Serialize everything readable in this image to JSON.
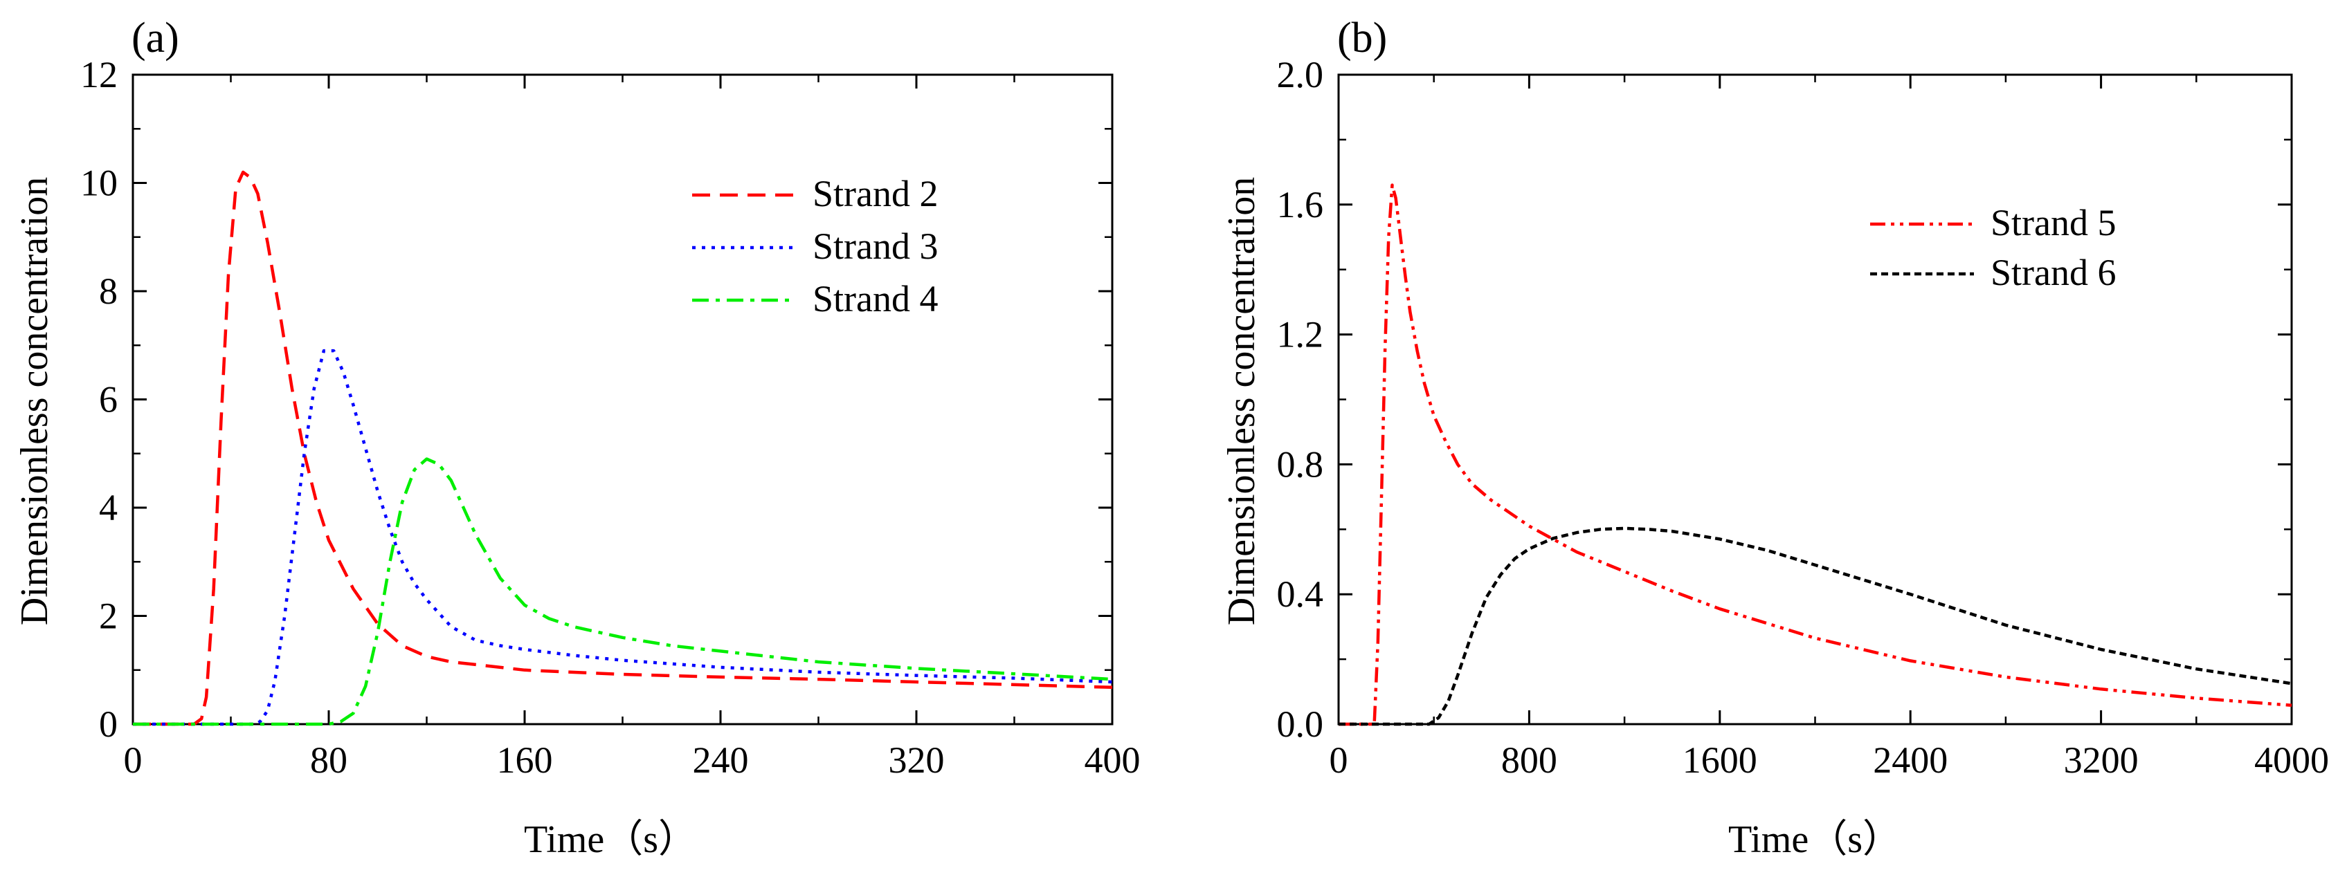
{
  "figure": {
    "panel_labels": [
      "(a)",
      "(b)"
    ]
  },
  "chart_data": [
    {
      "type": "line",
      "panel": "(a)",
      "title": "",
      "xlabel": "Time（s）",
      "ylabel": "Dimensionless concentration",
      "xlim": [
        0,
        400
      ],
      "ylim": [
        0,
        12
      ],
      "xticks": [
        0,
        80,
        160,
        240,
        320,
        400
      ],
      "yticks": [
        0,
        2,
        4,
        6,
        8,
        10,
        12
      ],
      "xtick_labels": [
        "0",
        "80",
        "160",
        "240",
        "320",
        "400"
      ],
      "ytick_labels": [
        "0",
        "2",
        "4",
        "6",
        "8",
        "10",
        "12"
      ],
      "grid": false,
      "legend": "upper-right",
      "series": [
        {
          "name": "Strand 2",
          "color": "#ff0000",
          "dash": "dashed",
          "x": [
            0,
            25,
            28,
            30,
            33,
            36,
            39,
            42,
            45,
            48,
            51,
            55,
            60,
            65,
            70,
            75,
            80,
            90,
            100,
            110,
            120,
            130,
            140,
            160,
            200,
            240,
            280,
            320,
            360,
            400
          ],
          "y": [
            0,
            0,
            0.1,
            0.5,
            2.5,
            5.6,
            8.3,
            9.9,
            10.2,
            10.1,
            9.8,
            8.9,
            7.6,
            6.2,
            5.0,
            4.1,
            3.4,
            2.5,
            1.85,
            1.45,
            1.25,
            1.15,
            1.1,
            1.0,
            0.92,
            0.87,
            0.83,
            0.78,
            0.73,
            0.68
          ]
        },
        {
          "name": "Strand 3",
          "color": "#0000ff",
          "dash": "dotted",
          "x": [
            0,
            50,
            52,
            55,
            58,
            62,
            66,
            70,
            74,
            78,
            82,
            86,
            90,
            95,
            100,
            105,
            110,
            115,
            120,
            130,
            140,
            150,
            160,
            180,
            200,
            240,
            280,
            320,
            360,
            400
          ],
          "y": [
            0,
            0,
            0.05,
            0.25,
            0.8,
            2.0,
            3.5,
            5.0,
            6.2,
            6.9,
            6.9,
            6.5,
            5.9,
            5.1,
            4.3,
            3.6,
            3.0,
            2.6,
            2.3,
            1.8,
            1.55,
            1.45,
            1.38,
            1.27,
            1.18,
            1.05,
            0.96,
            0.9,
            0.85,
            0.78
          ]
        },
        {
          "name": "Strand 4",
          "color": "#00ee00",
          "dash": "dashdot",
          "x": [
            0,
            80,
            85,
            90,
            95,
            100,
            105,
            110,
            115,
            120,
            125,
            130,
            135,
            140,
            150,
            160,
            170,
            180,
            190,
            200,
            220,
            240,
            260,
            280,
            320,
            360,
            400
          ],
          "y": [
            0,
            0,
            0.05,
            0.2,
            0.7,
            1.7,
            3.0,
            4.1,
            4.7,
            4.9,
            4.8,
            4.5,
            4.0,
            3.5,
            2.7,
            2.2,
            1.95,
            1.8,
            1.7,
            1.6,
            1.45,
            1.35,
            1.25,
            1.15,
            1.03,
            0.93,
            0.83
          ]
        }
      ]
    },
    {
      "type": "line",
      "panel": "(b)",
      "title": "",
      "xlabel": "Time（s）",
      "ylabel": "Dimensionless concentration",
      "xlim": [
        0,
        4000
      ],
      "ylim": [
        0,
        2.0
      ],
      "xticks": [
        0,
        800,
        1600,
        2400,
        3200,
        4000
      ],
      "yticks": [
        0,
        0.4,
        0.8,
        1.2,
        1.6,
        2.0
      ],
      "xtick_labels": [
        "0",
        "800",
        "1600",
        "2400",
        "3200",
        "4000"
      ],
      "ytick_labels": [
        "0.0",
        "0.4",
        "0.8",
        "1.2",
        "1.6",
        "2.0"
      ],
      "grid": false,
      "legend": "upper-right",
      "series": [
        {
          "name": "Strand 5",
          "color": "#ff0000",
          "dash": "dashdotdot",
          "x": [
            0,
            150,
            165,
            180,
            195,
            210,
            225,
            240,
            260,
            280,
            300,
            330,
            360,
            400,
            450,
            500,
            560,
            640,
            720,
            800,
            900,
            1000,
            1200,
            1400,
            1600,
            2000,
            2400,
            2800,
            3200,
            3600,
            4000
          ],
          "y": [
            0,
            0,
            0.25,
            0.7,
            1.15,
            1.5,
            1.66,
            1.62,
            1.5,
            1.38,
            1.27,
            1.15,
            1.05,
            0.95,
            0.87,
            0.8,
            0.74,
            0.69,
            0.65,
            0.61,
            0.57,
            0.53,
            0.47,
            0.41,
            0.355,
            0.265,
            0.195,
            0.145,
            0.108,
            0.08,
            0.058
          ]
        },
        {
          "name": "Strand 6",
          "color": "#000000",
          "dash": "dashed-fine",
          "x": [
            0,
            380,
            420,
            460,
            500,
            560,
            620,
            680,
            740,
            800,
            900,
            1000,
            1100,
            1200,
            1300,
            1400,
            1600,
            1800,
            2000,
            2400,
            2800,
            3200,
            3600,
            4000
          ],
          "y": [
            0,
            0,
            0.02,
            0.07,
            0.15,
            0.28,
            0.39,
            0.46,
            0.51,
            0.54,
            0.572,
            0.59,
            0.6,
            0.603,
            0.6,
            0.594,
            0.57,
            0.535,
            0.49,
            0.4,
            0.305,
            0.23,
            0.17,
            0.125
          ]
        }
      ]
    }
  ]
}
